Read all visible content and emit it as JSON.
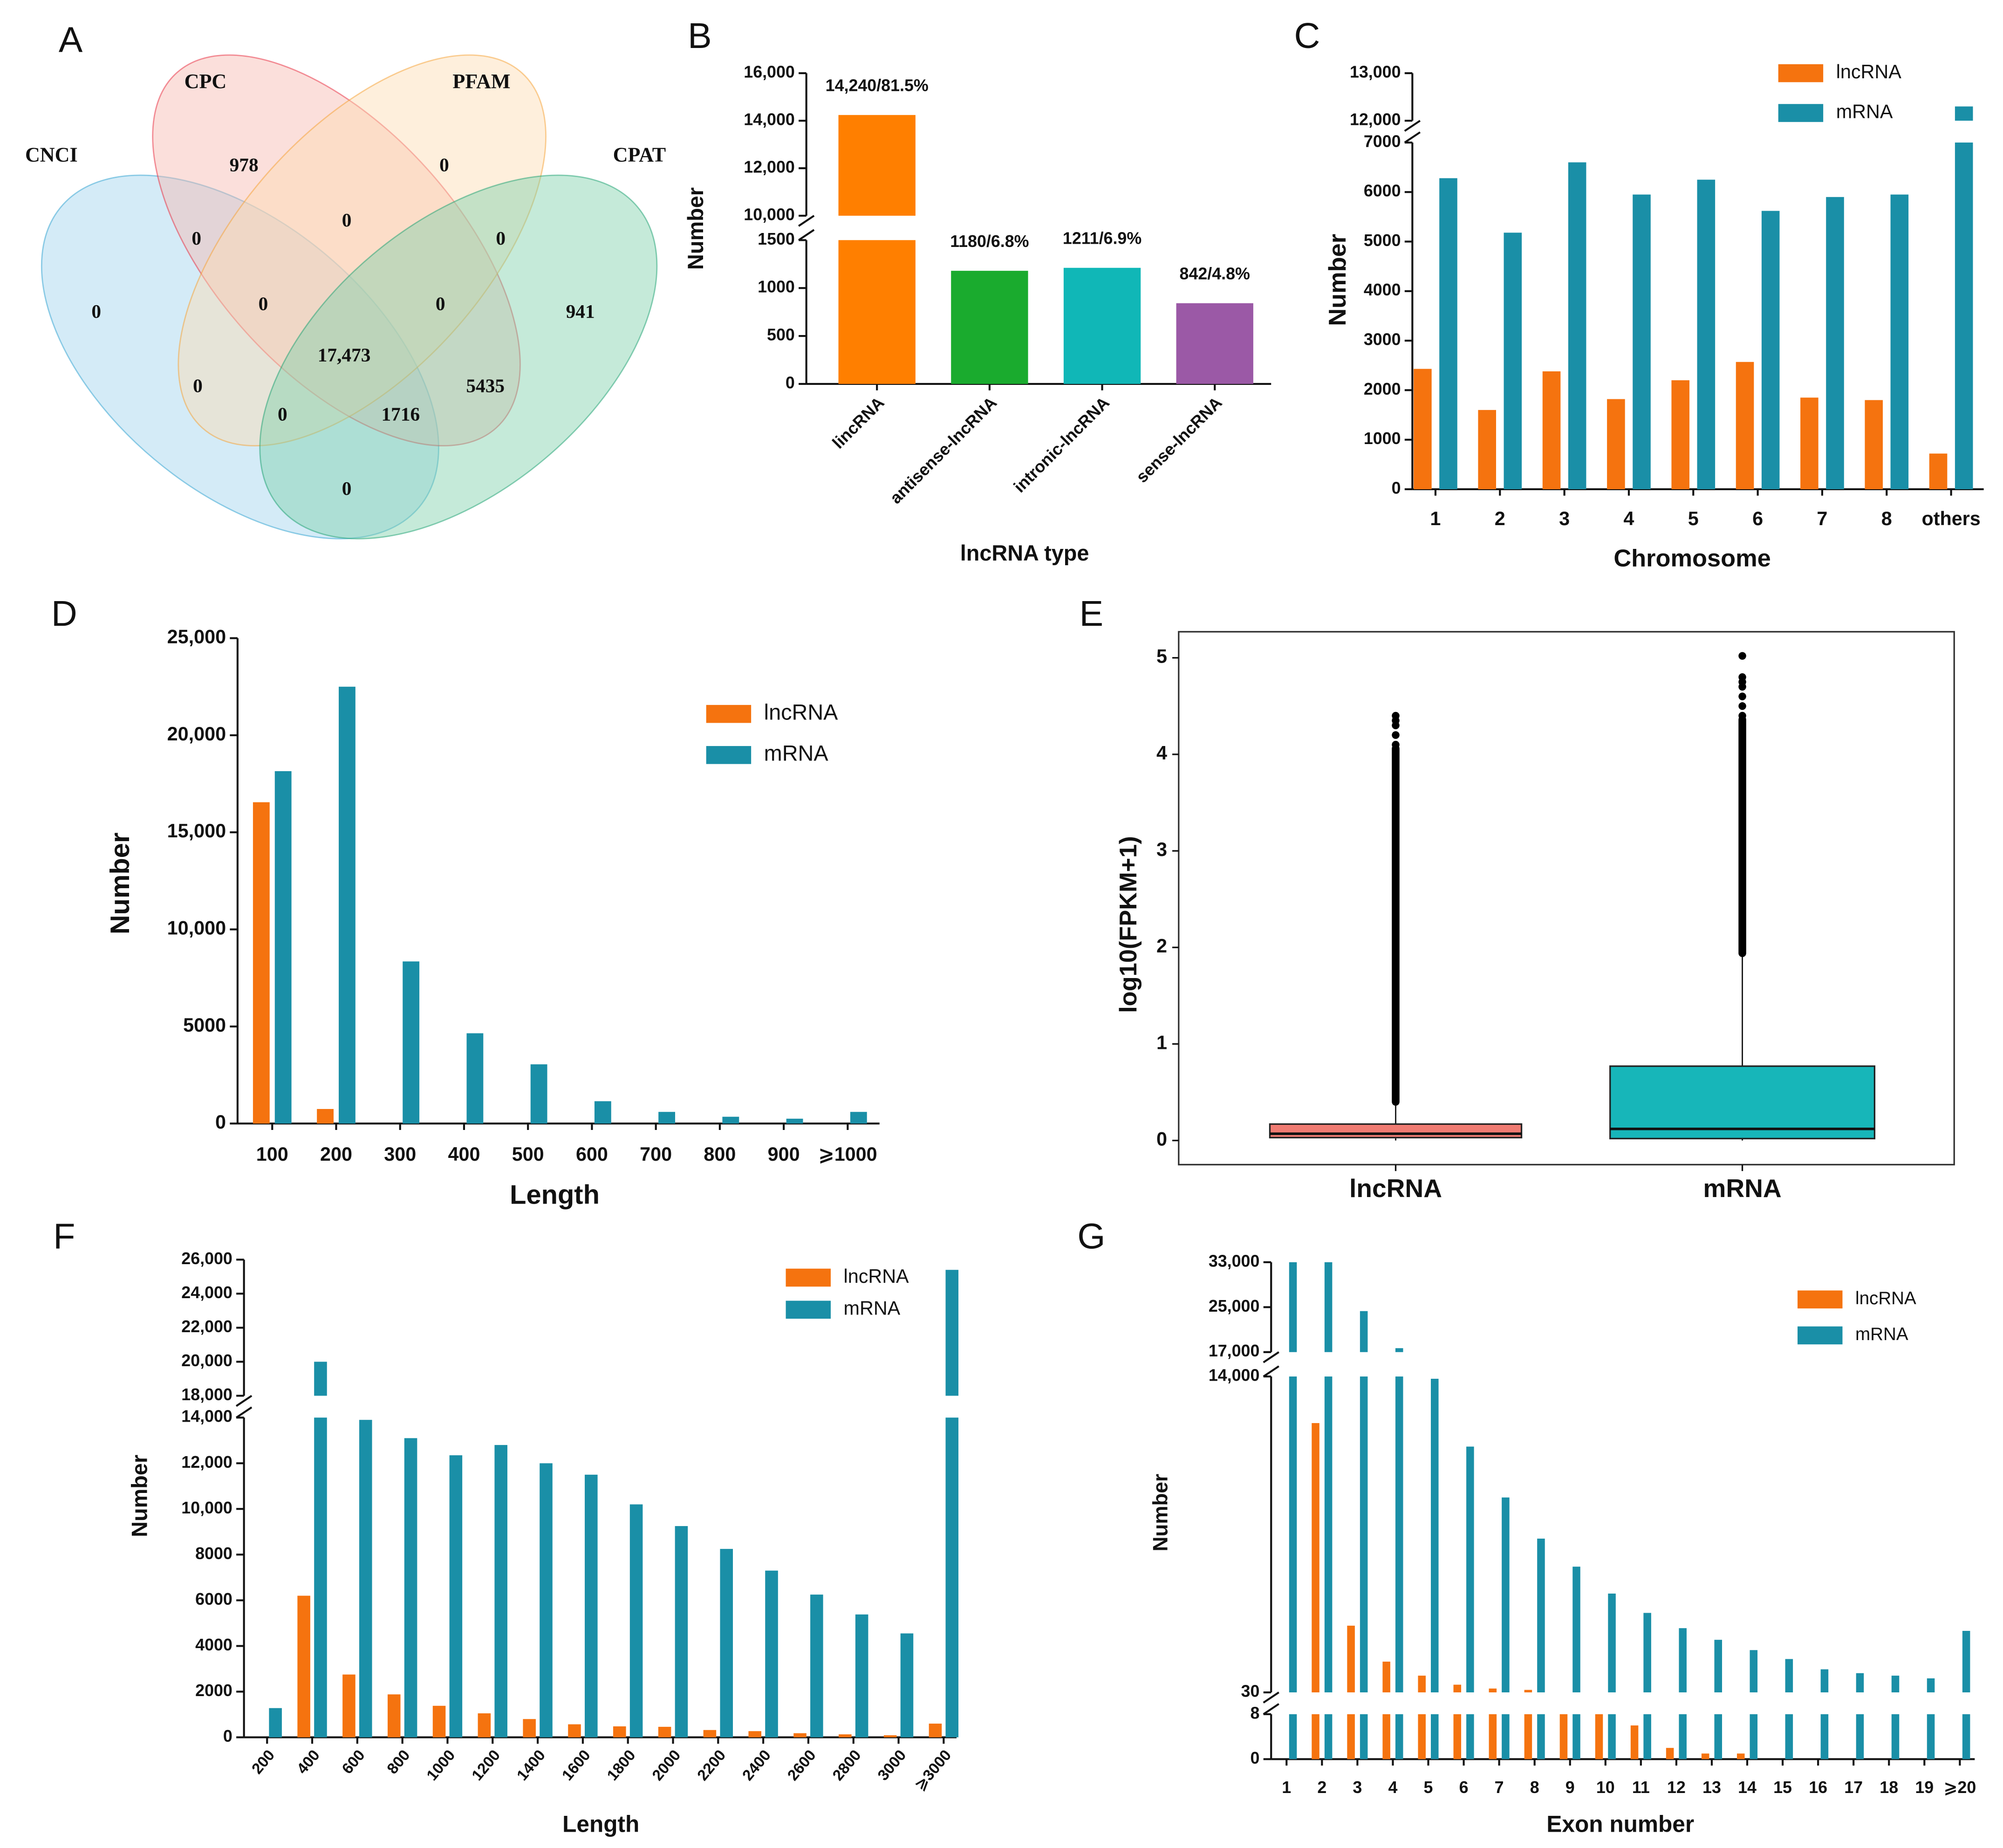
{
  "chart_data": [
    {
      "type": "venn",
      "label": "A",
      "sets": [
        {
          "name": "CNCI",
          "color": "#9fd2ee",
          "label_color": "#2a9fd0"
        },
        {
          "name": "CPC",
          "color": "#f6b9b0",
          "label_color": "#e8283c"
        },
        {
          "name": "PFAM",
          "color": "#fcdcb2",
          "label_color": "#f5a030"
        },
        {
          "name": "CPAT",
          "color": "#7fd0aa",
          "label_color": "#1aa070"
        }
      ],
      "values": [
        978,
        0,
        0,
        0,
        0,
        0,
        0,
        0,
        941,
        17473,
        0,
        5435,
        0,
        1716,
        0
      ],
      "value_labels": {
        "9": "17,473"
      }
    },
    {
      "type": "bar",
      "label": "B",
      "xlabel": "lncRNA type",
      "ylabel": "Number",
      "categories": [
        "lincRNA",
        "antisense-lncRNA",
        "intronic-lncRNA",
        "sense-lncRNA"
      ],
      "values": [
        14240,
        1180,
        1211,
        842
      ],
      "value_labels": [
        "14,240/81.5%",
        "1180/6.8%",
        "1211/6.9%",
        "842/4.8%"
      ],
      "colors": [
        "#ff7f00",
        "#1aab2e",
        "#10b7b7",
        "#9b59a6"
      ],
      "y_segments": [
        {
          "ylim": [
            0,
            1500
          ],
          "yticks": [
            0,
            500,
            1000,
            1500
          ]
        },
        {
          "ylim": [
            10000,
            16000
          ],
          "yticks": [
            {
              "value": 10000,
              "label": "10,000"
            },
            {
              "value": 12000,
              "label": "12,000"
            },
            {
              "value": 14000,
              "label": "14,000"
            },
            {
              "value": 16000,
              "label": "16,000"
            }
          ]
        }
      ]
    },
    {
      "type": "bar",
      "label": "C",
      "xlabel": "Chromosome",
      "ylabel": "Number",
      "legend": "upper right",
      "categories": [
        1,
        2,
        3,
        4,
        5,
        6,
        7,
        8,
        "others"
      ],
      "series": [
        {
          "name": "lncRNA",
          "color": "#f5730f",
          "values": [
            2430,
            1600,
            2380,
            1820,
            2200,
            2570,
            1850,
            1800,
            720
          ]
        },
        {
          "name": "mRNA",
          "color": "#1a8fa7",
          "values": [
            6280,
            5180,
            6600,
            5950,
            6250,
            5620,
            5900,
            5950,
            12300
          ]
        }
      ],
      "y_segments": [
        {
          "ylim": [
            0,
            7000
          ],
          "yticks": [
            0,
            1000,
            2000,
            3000,
            4000,
            5000,
            6000,
            7000
          ]
        },
        {
          "ylim": [
            12000,
            13000
          ],
          "yticks": [
            {
              "value": 12000,
              "label": "12,000"
            },
            {
              "value": 13000,
              "label": "13,000"
            }
          ]
        }
      ]
    },
    {
      "type": "bar",
      "label": "D",
      "xlabel": "Length",
      "ylabel": "Number",
      "legend": "upper right",
      "categories": [
        100,
        200,
        300,
        400,
        500,
        600,
        700,
        800,
        900,
        "⩾1000"
      ],
      "series": [
        {
          "name": "lncRNA",
          "color": "#f5730f",
          "values": [
            16550,
            750,
            0,
            0,
            0,
            0,
            0,
            0,
            0,
            0
          ]
        },
        {
          "name": "mRNA",
          "color": "#1a8fa7",
          "values": [
            18150,
            22500,
            8350,
            4650,
            3050,
            1150,
            600,
            350,
            250,
            600
          ]
        }
      ],
      "ylim": [
        0,
        25000
      ],
      "yticks": [
        0,
        5000,
        {
          "value": 10000,
          "label": "10,000"
        },
        {
          "value": 15000,
          "label": "15,000"
        },
        {
          "value": 20000,
          "label": "20,000"
        },
        {
          "value": 25000,
          "label": "25,000"
        }
      ]
    },
    {
      "type": "box",
      "label": "E",
      "ylabel": "log10(FPKM+1)",
      "categories": [
        "lncRNA",
        "mRNA"
      ],
      "colors": [
        "#f07b72",
        "#17b6b9"
      ],
      "whisker_low": [
        0,
        0
      ],
      "q1": [
        0.03,
        0.02
      ],
      "median": [
        0.07,
        0.12
      ],
      "q3": [
        0.17,
        0.77
      ],
      "whisker_high": [
        0.36,
        1.9
      ],
      "outliers": [
        [
          4.1,
          4.2,
          4.3,
          4.35,
          4.4
        ],
        [
          4.4,
          4.5,
          4.6,
          4.7,
          4.75,
          4.8,
          5.02
        ]
      ],
      "ylim": [
        -0.25,
        5.27
      ],
      "yticks": [
        0,
        1,
        2,
        3,
        4,
        5
      ]
    },
    {
      "type": "bar",
      "label": "F",
      "xlabel": "Length",
      "ylabel": "Number",
      "legend": "upper right",
      "categories": [
        200,
        400,
        600,
        800,
        1000,
        1200,
        1400,
        1600,
        1800,
        2000,
        2200,
        2400,
        2600,
        2800,
        3000,
        "⩾3000"
      ],
      "series": [
        {
          "name": "lncRNA",
          "color": "#f5730f",
          "values": [
            0,
            6200,
            2750,
            1880,
            1380,
            1050,
            800,
            570,
            480,
            460,
            320,
            270,
            180,
            130,
            90,
            600
          ]
        },
        {
          "name": "mRNA",
          "color": "#1a8fa7",
          "values": [
            1280,
            20000,
            13900,
            13100,
            12350,
            12800,
            12000,
            11500,
            10200,
            9250,
            8250,
            7300,
            6250,
            5380,
            4550,
            25400
          ]
        }
      ],
      "y_segments": [
        {
          "ylim": [
            0,
            14000
          ],
          "yticks": [
            0,
            2000,
            4000,
            6000,
            8000,
            {
              "value": 10000,
              "label": "10,000"
            },
            {
              "value": 12000,
              "label": "12,000"
            },
            {
              "value": 14000,
              "label": "14,000"
            }
          ]
        },
        {
          "ylim": [
            18000,
            26000
          ],
          "yticks": [
            {
              "value": 18000,
              "label": "18,000"
            },
            {
              "value": 20000,
              "label": "20,000"
            },
            {
              "value": 22000,
              "label": "22,000"
            },
            {
              "value": 24000,
              "label": "24,000"
            },
            {
              "value": 26000,
              "label": "26,000"
            }
          ]
        }
      ]
    },
    {
      "type": "bar",
      "label": "G",
      "xlabel": "Exon number",
      "ylabel": "Number",
      "legend": "upper right",
      "categories": [
        1,
        2,
        3,
        4,
        5,
        6,
        7,
        8,
        9,
        10,
        11,
        12,
        13,
        14,
        15,
        16,
        17,
        18,
        19,
        "⩾20"
      ],
      "series": [
        {
          "name": "lncRNA",
          "color": "#f5730f",
          "values": [
            0,
            11940,
            2980,
            1390,
            770,
            370,
            200,
            140,
            25,
            15,
            6,
            2,
            1,
            1,
            0,
            0,
            0,
            0,
            0,
            0
          ]
        },
        {
          "name": "mRNA",
          "color": "#1a8fa7",
          "values": [
            33000,
            33000,
            24300,
            17700,
            13900,
            10900,
            8650,
            6830,
            5590,
            4400,
            3545,
            2870,
            2355,
            1900,
            1505,
            1050,
            880,
            770,
            650,
            2750
          ]
        }
      ],
      "y_segments": [
        {
          "ylim": [
            0,
            8
          ],
          "yticks": [
            0,
            8
          ]
        },
        {
          "ylim": [
            30,
            14000
          ],
          "yticks": [
            30,
            {
              "value": 14000,
              "label": "14,000"
            }
          ]
        },
        {
          "ylim": [
            17000,
            33000
          ],
          "yticks": [
            {
              "value": 17000,
              "label": "17,000"
            },
            {
              "value": 25000,
              "label": "25,000"
            },
            {
              "value": 33000,
              "label": "33,000"
            }
          ]
        }
      ]
    }
  ]
}
